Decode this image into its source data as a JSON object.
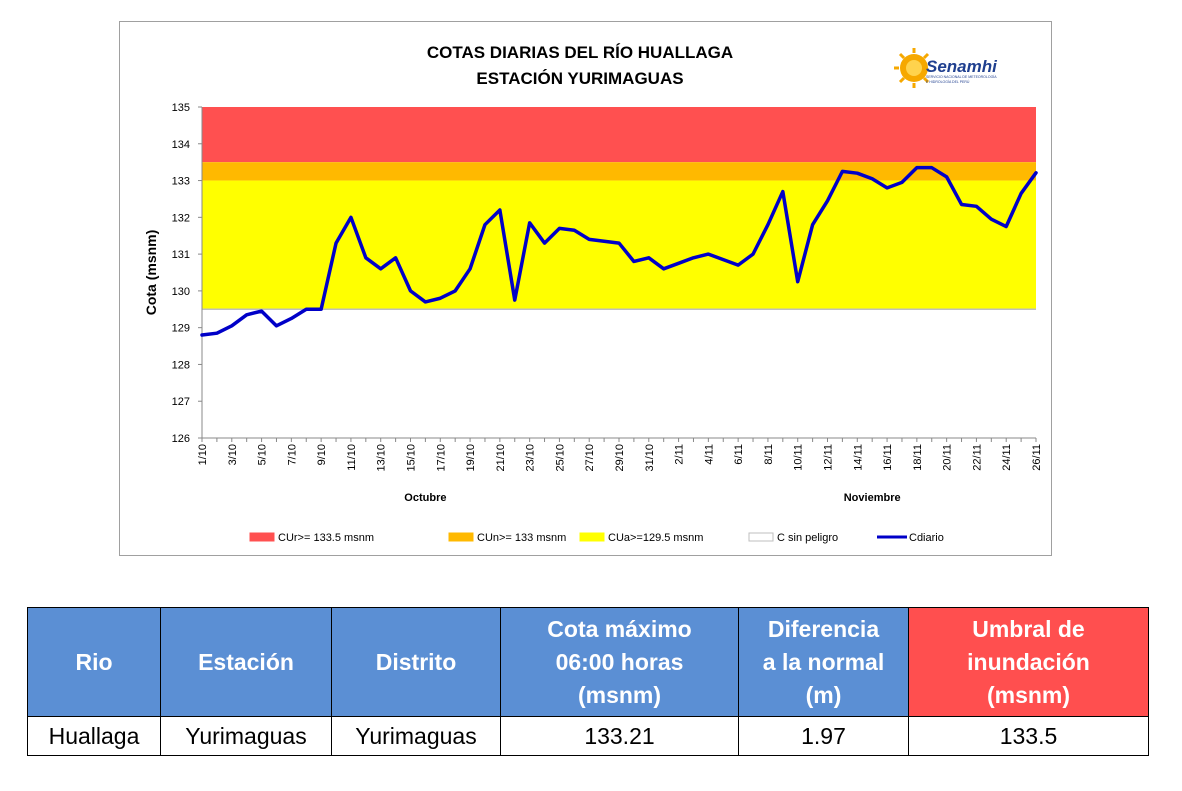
{
  "chart_data": {
    "type": "line",
    "title": [
      "COTAS DIARIAS DEL RÍO HUALLAGA",
      "ESTACIÓN YURIMAGUAS"
    ],
    "logo": {
      "name": "Senamhi",
      "subtitle": [
        "SERVICIO NACIONAL DE METEOROLOGÍA",
        "E HIDROLOGÍA DEL PERÚ"
      ]
    },
    "ylabel": "Cota (msnm)",
    "ylim": [
      126,
      135
    ],
    "yticks": [
      126,
      127,
      128,
      129,
      130,
      131,
      132,
      133,
      134,
      135
    ],
    "x": [
      "1/10",
      "2/10",
      "3/10",
      "4/10",
      "5/10",
      "6/10",
      "7/10",
      "8/10",
      "9/10",
      "10/10",
      "11/10",
      "12/10",
      "13/10",
      "14/10",
      "15/10",
      "16/10",
      "17/10",
      "18/10",
      "19/10",
      "20/10",
      "21/10",
      "22/10",
      "23/10",
      "24/10",
      "25/10",
      "26/10",
      "27/10",
      "28/10",
      "29/10",
      "30/10",
      "31/10",
      "1/11",
      "2/11",
      "3/11",
      "4/11",
      "5/11",
      "6/11",
      "7/11",
      "8/11",
      "9/11",
      "10/11",
      "11/11",
      "12/11",
      "13/11",
      "14/11",
      "15/11",
      "16/11",
      "17/11",
      "18/11",
      "19/11",
      "20/11",
      "21/11",
      "22/11",
      "23/11",
      "24/11",
      "25/11",
      "26/11"
    ],
    "xtick_labels": [
      "1/10",
      "3/10",
      "5/10",
      "7/10",
      "9/10",
      "11/10",
      "13/10",
      "15/10",
      "17/10",
      "19/10",
      "21/10",
      "23/10",
      "25/10",
      "27/10",
      "29/10",
      "31/10",
      "2/11",
      "4/11",
      "6/11",
      "8/11",
      "10/11",
      "12/11",
      "14/11",
      "16/11",
      "18/11",
      "20/11",
      "22/11",
      "24/11",
      "26/11"
    ],
    "month_labels": [
      "Octubre",
      "Noviembre"
    ],
    "bands": [
      {
        "name": "CUr>= 133.5 msnm",
        "from": 133.5,
        "to": 135,
        "color": "#ff5050"
      },
      {
        "name": "CUn>= 133 msnm",
        "from": 133,
        "to": 133.5,
        "color": "#ffb900"
      },
      {
        "name": "CUa>=129.5 msnm",
        "from": 129.5,
        "to": 133,
        "color": "#ffff00"
      },
      {
        "name": "C sin peligro",
        "from": 126,
        "to": 129.5,
        "color": "#ffffff"
      }
    ],
    "series": [
      {
        "name": "Cdiario",
        "color": "#0000c8",
        "values": [
          128.8,
          128.85,
          129.05,
          129.35,
          129.45,
          129.05,
          129.25,
          129.5,
          129.5,
          131.3,
          132.0,
          130.9,
          130.6,
          130.9,
          130.0,
          129.7,
          129.8,
          130.0,
          130.6,
          131.8,
          132.2,
          129.75,
          131.85,
          131.3,
          131.7,
          131.65,
          131.4,
          131.35,
          131.3,
          130.8,
          130.9,
          130.6,
          130.75,
          130.9,
          131.0,
          130.85,
          130.7,
          131.0,
          131.8,
          132.7,
          130.25,
          131.8,
          132.45,
          133.25,
          133.2,
          133.05,
          132.8,
          132.95,
          133.35,
          133.35,
          133.1,
          132.35,
          132.3,
          131.95,
          131.75,
          132.65,
          133.21
        ]
      }
    ],
    "legend_position": "bottom",
    "grid": false
  },
  "table": {
    "headers": [
      "Rio",
      "Estación",
      "Distrito",
      "Cota máximo 06:00 horas (msnm)",
      "Diferencia a la normal (m)",
      "Umbral de inundación (msnm)"
    ],
    "header_lines": [
      [
        "Rio"
      ],
      [
        "Estación"
      ],
      [
        "Distrito"
      ],
      [
        "Cota máximo",
        "06:00 horas",
        "(msnm)"
      ],
      [
        "Diferencia",
        "a la normal",
        "(m)"
      ],
      [
        "Umbral de",
        "inundación",
        "(msnm)"
      ]
    ],
    "row": [
      "Huallaga",
      "Yurimaguas",
      "Yurimaguas",
      "133.21",
      "1.97",
      "133.5"
    ],
    "colors": {
      "header_bg": "#5b8fd4",
      "umbral_bg": "#ff4f4f",
      "header_text": "#ffffff"
    }
  }
}
